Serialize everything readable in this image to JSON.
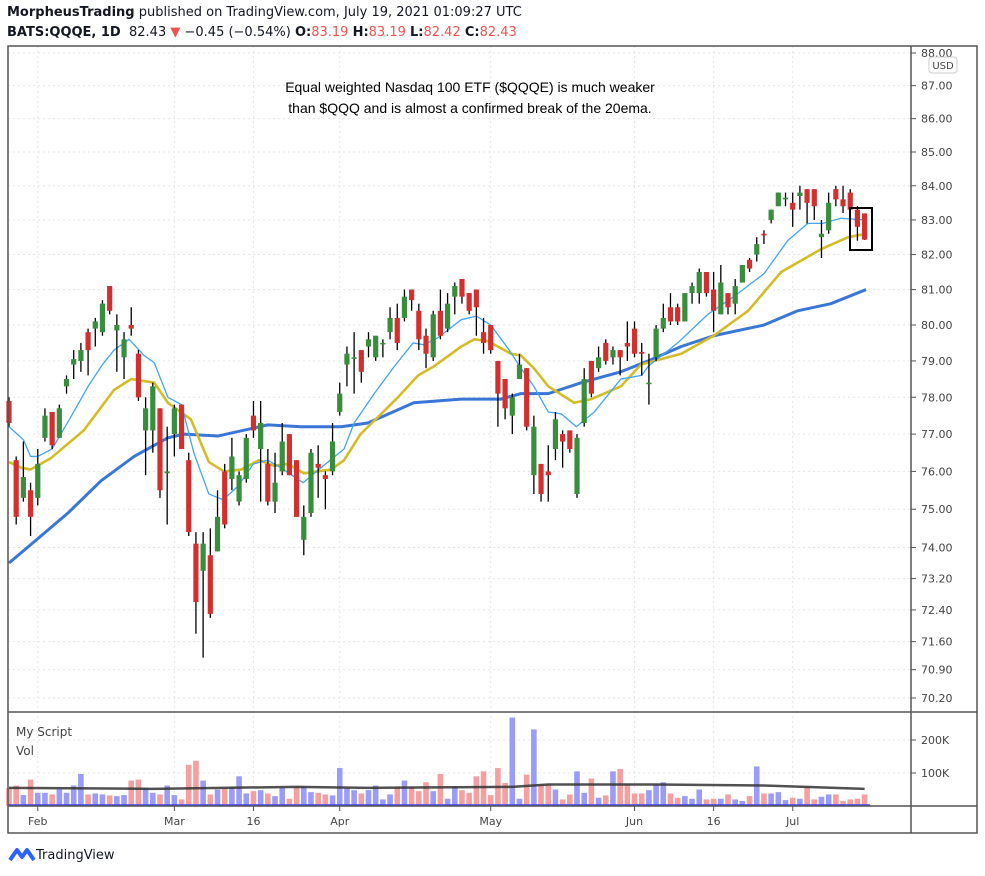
{
  "header": {
    "author": "MorpheusTrading",
    "published": "published on TradingView.com, July 19, 2021 01:09:27 UTC",
    "symbol": "BATS:QQQE, 1D",
    "last": "82.43",
    "change": "−0.45 (−0.54%)",
    "o_label": "O:",
    "o": "83.19",
    "h_label": "H:",
    "h": "83.19",
    "l_label": "L:",
    "l": "82.42",
    "c_label": "C:",
    "c": "82.43"
  },
  "currency_badge": "USD",
  "annotation": [
    "Equal weighted Nasdaq 100 ETF ($QQQE) is much weaker",
    "than $QQQ and is almost a confirmed break of the 20ema."
  ],
  "volume_pane": {
    "script_label": "My Script",
    "vol_label": "Vol",
    "ticks": [
      {
        "v": 200,
        "label": "200K"
      },
      {
        "v": 100,
        "label": "100K"
      }
    ]
  },
  "footer": {
    "brand": "TradingView"
  },
  "colors": {
    "up": "#388e3c",
    "down": "#d32f2f",
    "ema10": "#42a5f5",
    "ema20": "#d4bc26",
    "sma50": "#3a76d8",
    "vol_up": "#9a9cf7",
    "vol_down": "#f5a0a0",
    "vol_ma": "#333333"
  },
  "chart_data": {
    "type": "candlestick",
    "title": "BATS:QQQE, 1D",
    "y_scale": "log",
    "ylim": [
      70.2,
      88.0
    ],
    "y_ticks": [
      "88.00",
      "87.00",
      "86.00",
      "85.00",
      "84.00",
      "83.00",
      "82.00",
      "81.00",
      "80.00",
      "79.00",
      "78.00",
      "77.00",
      "76.00",
      "75.00",
      "74.00",
      "73.20",
      "72.40",
      "71.60",
      "70.90",
      "70.20"
    ],
    "x_ticks": [
      {
        "i": 4,
        "label": "Feb"
      },
      {
        "i": 23,
        "label": "Mar"
      },
      {
        "i": 34,
        "label": "16"
      },
      {
        "i": 46,
        "label": "Apr"
      },
      {
        "i": 67,
        "label": "May"
      },
      {
        "i": 87,
        "label": "Jun"
      },
      {
        "i": 98,
        "label": "16"
      },
      {
        "i": 109,
        "label": "Jul"
      }
    ],
    "ohlc": [
      [
        77.9,
        78.0,
        77.2,
        77.3
      ],
      [
        76.3,
        76.4,
        74.6,
        74.8
      ],
      [
        75.3,
        76.8,
        75.2,
        75.85
      ],
      [
        75.5,
        75.7,
        74.3,
        74.8
      ],
      [
        75.3,
        76.6,
        75.1,
        76.2
      ],
      [
        76.9,
        77.7,
        76.8,
        77.5
      ],
      [
        77.6,
        77.6,
        76.6,
        76.7
      ],
      [
        76.9,
        77.8,
        76.9,
        77.7
      ],
      [
        78.3,
        78.6,
        78.1,
        78.5
      ],
      [
        78.9,
        79.3,
        78.5,
        79.05
      ],
      [
        79.0,
        79.5,
        78.7,
        79.3
      ],
      [
        79.8,
        79.9,
        78.6,
        79.3
      ],
      [
        79.9,
        80.2,
        79.4,
        80.1
      ],
      [
        79.8,
        80.7,
        79.7,
        80.6
      ],
      [
        81.1,
        81.1,
        80.3,
        80.4
      ],
      [
        79.85,
        80.3,
        78.7,
        80.0
      ],
      [
        79.1,
        79.8,
        78.5,
        79.6
      ],
      [
        80.0,
        80.5,
        79.7,
        79.9
      ],
      [
        79.2,
        79.3,
        77.9,
        78.0
      ],
      [
        77.1,
        78.0,
        75.9,
        77.7
      ],
      [
        77.1,
        78.4,
        76.5,
        78.3
      ],
      [
        77.7,
        77.7,
        75.3,
        75.5
      ],
      [
        75.95,
        77.2,
        74.6,
        76.0
      ],
      [
        77.0,
        77.8,
        76.4,
        77.7
      ],
      [
        77.8,
        77.8,
        76.6,
        76.6
      ],
      [
        76.3,
        76.5,
        74.3,
        74.4
      ],
      [
        74.1,
        74.4,
        71.8,
        72.6
      ],
      [
        73.4,
        74.4,
        71.2,
        74.1
      ],
      [
        73.8,
        74.5,
        72.2,
        72.3
      ],
      [
        73.9,
        75.5,
        73.9,
        74.8
      ],
      [
        76.0,
        76.2,
        74.5,
        74.6
      ],
      [
        75.8,
        76.9,
        75.5,
        76.4
      ],
      [
        75.2,
        76.0,
        75.1,
        75.9
      ],
      [
        75.8,
        77.0,
        75.7,
        76.9
      ],
      [
        77.5,
        77.9,
        76.9,
        77.1
      ],
      [
        76.6,
        77.9,
        75.2,
        77.3
      ],
      [
        76.2,
        76.6,
        75.1,
        75.2
      ],
      [
        75.2,
        76.5,
        74.9,
        75.7
      ],
      [
        76.0,
        77.3,
        75.9,
        76.8
      ],
      [
        77.0,
        77.0,
        75.9,
        75.9
      ],
      [
        76.3,
        76.3,
        74.8,
        74.8
      ],
      [
        74.2,
        75.1,
        73.8,
        74.8
      ],
      [
        74.9,
        76.6,
        74.8,
        76.5
      ],
      [
        76.2,
        76.7,
        75.3,
        76.1
      ],
      [
        75.9,
        76.0,
        75.0,
        75.8
      ],
      [
        76.0,
        77.3,
        75.9,
        76.8
      ],
      [
        77.6,
        78.4,
        77.5,
        78.1
      ],
      [
        78.9,
        79.4,
        78.3,
        79.2
      ],
      [
        79.1,
        79.8,
        78.1,
        79.1
      ],
      [
        79.3,
        79.3,
        78.4,
        78.7
      ],
      [
        79.4,
        79.8,
        79.1,
        79.6
      ],
      [
        79.1,
        79.7,
        79.0,
        79.7
      ],
      [
        79.5,
        79.6,
        79.1,
        79.5
      ],
      [
        79.8,
        80.5,
        79.6,
        80.2
      ],
      [
        80.2,
        80.6,
        79.3,
        79.5
      ],
      [
        80.2,
        81.0,
        80.1,
        80.8
      ],
      [
        81.0,
        81.0,
        80.4,
        80.7
      ],
      [
        80.4,
        80.6,
        79.3,
        79.6
      ],
      [
        79.7,
        79.9,
        78.8,
        79.2
      ],
      [
        79.1,
        80.4,
        79.0,
        80.3
      ],
      [
        80.4,
        81.0,
        79.6,
        79.7
      ],
      [
        79.9,
        80.9,
        79.8,
        80.6
      ],
      [
        80.8,
        81.2,
        80.3,
        81.1
      ],
      [
        81.3,
        81.3,
        80.6,
        80.8
      ],
      [
        80.9,
        80.9,
        80.3,
        80.4
      ],
      [
        81.0,
        81.0,
        79.7,
        80.5
      ],
      [
        79.8,
        80.2,
        79.2,
        79.5
      ],
      [
        80.0,
        80.0,
        79.2,
        79.3
      ],
      [
        79.0,
        79.0,
        77.2,
        78.1
      ],
      [
        78.5,
        78.5,
        77.4,
        77.7
      ],
      [
        77.5,
        78.1,
        77.0,
        78.0
      ],
      [
        78.5,
        79.2,
        78.5,
        78.9
      ],
      [
        78.8,
        78.8,
        77.1,
        77.2
      ],
      [
        75.9,
        77.5,
        75.4,
        77.2
      ],
      [
        76.2,
        76.2,
        75.2,
        75.4
      ],
      [
        76.0,
        76.7,
        75.2,
        75.9
      ],
      [
        76.6,
        77.6,
        76.3,
        77.4
      ],
      [
        77.0,
        77.1,
        76.1,
        76.8
      ],
      [
        77.1,
        77.1,
        76.5,
        76.6
      ],
      [
        75.4,
        77.0,
        75.3,
        76.9
      ],
      [
        77.3,
        78.8,
        77.2,
        78.5
      ],
      [
        79.0,
        79.0,
        78.0,
        78.1
      ],
      [
        78.8,
        79.4,
        78.7,
        79.1
      ],
      [
        79.5,
        79.6,
        78.9,
        79.0
      ],
      [
        79.1,
        79.4,
        78.9,
        79.3
      ],
      [
        79.3,
        79.3,
        78.6,
        79.1
      ],
      [
        79.5,
        80.1,
        79.0,
        79.4
      ],
      [
        79.9,
        80.1,
        79.1,
        79.2
      ],
      [
        79.25,
        79.5,
        78.6,
        79.2
      ],
      [
        78.4,
        79.2,
        77.8,
        78.4
      ],
      [
        79.1,
        80.0,
        79.0,
        79.9
      ],
      [
        79.9,
        80.6,
        79.8,
        80.2
      ],
      [
        80.5,
        80.9,
        80.0,
        80.1
      ],
      [
        80.5,
        80.6,
        80.0,
        80.1
      ],
      [
        80.1,
        80.9,
        80.1,
        80.9
      ],
      [
        80.9,
        81.2,
        80.6,
        81.1
      ],
      [
        80.9,
        81.6,
        80.6,
        81.5
      ],
      [
        81.5,
        81.5,
        80.8,
        80.9
      ],
      [
        81.0,
        81.5,
        79.8,
        80.4
      ],
      [
        80.3,
        81.7,
        80.3,
        81.2
      ],
      [
        80.9,
        80.9,
        80.3,
        80.5
      ],
      [
        80.6,
        81.3,
        80.3,
        81.1
      ],
      [
        81.2,
        81.7,
        81.2,
        81.7
      ],
      [
        81.85,
        81.9,
        81.5,
        81.6
      ],
      [
        82.0,
        82.5,
        81.8,
        82.3
      ],
      [
        82.6,
        82.7,
        82.3,
        82.55
      ],
      [
        83.0,
        83.3,
        82.9,
        83.3
      ],
      [
        83.4,
        83.8,
        83.4,
        83.8
      ],
      [
        83.6,
        83.8,
        83.4,
        83.65
      ],
      [
        83.5,
        83.8,
        82.8,
        83.3
      ],
      [
        83.7,
        84.0,
        83.3,
        83.8
      ],
      [
        83.9,
        83.9,
        82.9,
        83.5
      ],
      [
        83.9,
        83.9,
        83.0,
        83.4
      ],
      [
        82.5,
        83.0,
        81.9,
        82.6
      ],
      [
        82.7,
        83.8,
        82.6,
        83.5
      ],
      [
        83.9,
        84.0,
        83.4,
        83.6
      ],
      [
        83.6,
        84.0,
        83.2,
        83.4
      ],
      [
        83.8,
        83.9,
        83.2,
        83.3
      ],
      [
        83.3,
        83.4,
        82.4,
        82.8
      ],
      [
        83.19,
        83.19,
        82.42,
        82.43
      ]
    ],
    "ema10": [
      [
        0,
        77.2
      ],
      [
        2,
        76.85
      ],
      [
        3,
        76.4
      ],
      [
        4,
        76.4
      ],
      [
        6,
        76.6
      ],
      [
        9,
        77.6
      ],
      [
        11,
        78.3
      ],
      [
        13,
        78.9
      ],
      [
        14.6,
        79.3
      ],
      [
        16.7,
        79.6
      ],
      [
        18.8,
        79.15
      ],
      [
        20.2,
        78.95
      ],
      [
        22.1,
        78.0
      ],
      [
        24,
        77.8
      ],
      [
        25.7,
        76.5
      ],
      [
        27.8,
        75.4
      ],
      [
        29.8,
        75.25
      ],
      [
        31.8,
        75.6
      ],
      [
        34,
        76.2
      ],
      [
        36,
        76.3
      ],
      [
        37.8,
        76.1
      ],
      [
        40.9,
        75.7
      ],
      [
        43.4,
        76.1
      ],
      [
        46.6,
        76.6
      ],
      [
        48,
        77.3
      ],
      [
        50.8,
        78.1
      ],
      [
        53.6,
        78.85
      ],
      [
        56.2,
        79.5
      ],
      [
        57.7,
        79.45
      ],
      [
        59.7,
        79.65
      ],
      [
        62.9,
        80.15
      ],
      [
        65,
        80.25
      ],
      [
        67,
        80.0
      ],
      [
        69.4,
        79.35
      ],
      [
        71.2,
        78.8
      ],
      [
        73,
        78.3
      ],
      [
        75,
        77.6
      ],
      [
        76.8,
        77.55
      ],
      [
        78.9,
        77.2
      ],
      [
        81.4,
        77.6
      ],
      [
        85.1,
        78.5
      ],
      [
        88,
        78.6
      ],
      [
        88.9,
        78.85
      ],
      [
        93,
        79.5
      ],
      [
        97.2,
        80.3
      ],
      [
        100.8,
        80.8
      ],
      [
        105,
        81.45
      ],
      [
        108.3,
        82.4
      ],
      [
        111.1,
        82.9
      ],
      [
        113.2,
        82.9
      ],
      [
        115.7,
        83.05
      ],
      [
        119,
        83.0
      ]
    ],
    "ema20": [
      [
        0,
        76.25
      ],
      [
        1.7,
        76.1
      ],
      [
        3,
        76.05
      ],
      [
        5.8,
        76.35
      ],
      [
        10.4,
        77.1
      ],
      [
        14.6,
        78.2
      ],
      [
        17,
        78.5
      ],
      [
        20.2,
        78.4
      ],
      [
        22.1,
        77.85
      ],
      [
        25.3,
        77.4
      ],
      [
        27.8,
        76.25
      ],
      [
        29.9,
        76.0
      ],
      [
        32.3,
        76.05
      ],
      [
        34.8,
        76.3
      ],
      [
        36.9,
        76.15
      ],
      [
        38.8,
        76.2
      ],
      [
        41,
        75.95
      ],
      [
        44.8,
        76.05
      ],
      [
        46.6,
        76.3
      ],
      [
        48.9,
        77.0
      ],
      [
        54.1,
        78.0
      ],
      [
        56.9,
        78.6
      ],
      [
        59.1,
        78.85
      ],
      [
        62.9,
        79.4
      ],
      [
        64.7,
        79.6
      ],
      [
        66.6,
        79.55
      ],
      [
        69.8,
        79.2
      ],
      [
        71.2,
        79.15
      ],
      [
        73,
        78.8
      ],
      [
        75,
        78.3
      ],
      [
        78.6,
        77.85
      ],
      [
        81,
        77.95
      ],
      [
        85.1,
        78.3
      ],
      [
        87.9,
        78.9
      ],
      [
        93.5,
        79.2
      ],
      [
        98,
        79.7
      ],
      [
        102.8,
        80.4
      ],
      [
        107.4,
        81.5
      ],
      [
        112.9,
        82.15
      ],
      [
        116.7,
        82.5
      ],
      [
        119.2,
        82.6
      ]
    ],
    "sma50": [
      [
        0,
        73.6
      ],
      [
        3.5,
        74.15
      ],
      [
        8.2,
        74.9
      ],
      [
        12.8,
        75.75
      ],
      [
        17.4,
        76.4
      ],
      [
        22.1,
        76.9
      ],
      [
        24.3,
        77.0
      ],
      [
        29.1,
        76.95
      ],
      [
        36,
        77.25
      ],
      [
        40.6,
        77.2
      ],
      [
        46.2,
        77.2
      ],
      [
        49.9,
        77.3
      ],
      [
        56.3,
        77.85
      ],
      [
        62.9,
        77.95
      ],
      [
        68.4,
        77.95
      ],
      [
        71.2,
        78.1
      ],
      [
        75,
        78.1
      ],
      [
        79.6,
        78.4
      ],
      [
        85.1,
        78.7
      ],
      [
        88.9,
        79.0
      ],
      [
        93.5,
        79.4
      ],
      [
        98,
        79.7
      ],
      [
        105,
        80.0
      ],
      [
        109.7,
        80.4
      ],
      [
        114.3,
        80.6
      ],
      [
        119.2,
        81.0
      ]
    ],
    "volume_k": [
      55,
      62,
      33,
      80,
      40,
      40,
      35,
      50,
      40,
      62,
      97,
      35,
      38,
      35,
      32,
      30,
      33,
      77,
      80,
      55,
      40,
      35,
      62,
      33,
      20,
      125,
      137,
      77,
      35,
      50,
      55,
      58,
      90,
      38,
      45,
      48,
      38,
      30,
      55,
      22,
      58,
      58,
      42,
      40,
      35,
      32,
      115,
      55,
      48,
      38,
      48,
      62,
      20,
      35,
      58,
      77,
      58,
      45,
      72,
      45,
      97,
      22,
      58,
      48,
      40,
      90,
      105,
      33,
      115,
      70,
      268,
      22,
      95,
      232,
      65,
      65,
      50,
      20,
      35,
      105,
      40,
      83,
      25,
      32,
      105,
      112,
      68,
      38,
      38,
      48,
      65,
      72,
      38,
      25,
      30,
      22,
      50,
      20,
      22,
      22,
      35,
      20,
      15,
      30,
      120,
      38,
      38,
      42,
      18,
      25,
      22,
      58,
      20,
      28,
      35,
      35,
      15,
      20,
      22,
      35
    ],
    "volume_ma_k": [
      [
        0,
        55
      ],
      [
        20,
        52
      ],
      [
        40,
        58
      ],
      [
        50,
        55
      ],
      [
        70,
        58
      ],
      [
        75,
        65
      ],
      [
        90,
        65
      ],
      [
        105,
        62
      ],
      [
        119,
        52
      ]
    ]
  }
}
